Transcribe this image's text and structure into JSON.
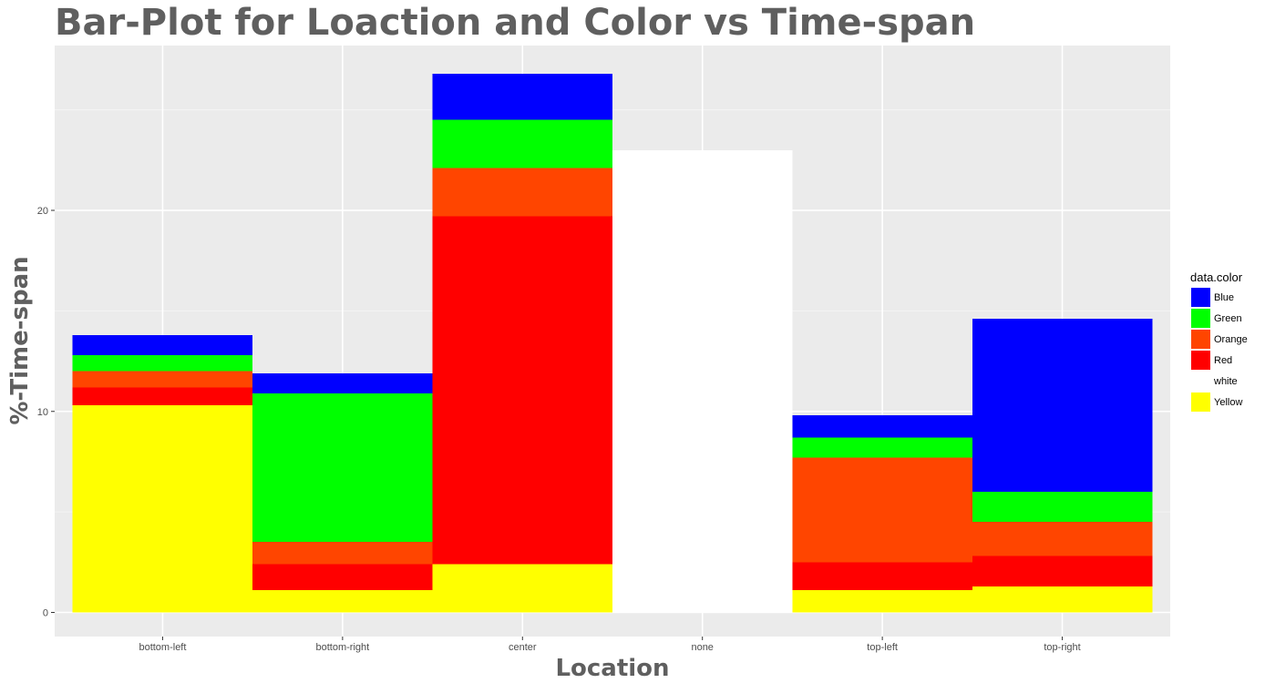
{
  "chart_data": {
    "type": "bar",
    "stacked": true,
    "title": "Bar-Plot for Loaction and Color vs Time-span",
    "xlabel": "Location",
    "ylabel": "%-Time-span",
    "categories": [
      "bottom-left",
      "bottom-right",
      "center",
      "none",
      "top-left",
      "top-right"
    ],
    "stack_order": [
      "Yellow",
      "Red",
      "Orange",
      "Green",
      "Blue",
      "white"
    ],
    "series": [
      {
        "name": "Blue",
        "color": "#0000ff",
        "values": [
          1.0,
          1.0,
          2.3,
          0,
          1.1,
          8.6
        ]
      },
      {
        "name": "Green",
        "color": "#00ff00",
        "values": [
          0.8,
          7.4,
          2.4,
          0,
          1.0,
          1.5
        ]
      },
      {
        "name": "Orange",
        "color": "#ff4500",
        "values": [
          0.8,
          1.1,
          2.4,
          0,
          5.2,
          1.7
        ]
      },
      {
        "name": "Red",
        "color": "#ff0000",
        "values": [
          0.9,
          1.3,
          17.3,
          0,
          1.4,
          1.5
        ]
      },
      {
        "name": "white",
        "color": "#ffffff",
        "values": [
          0,
          0,
          0,
          23.0,
          0,
          0
        ]
      },
      {
        "name": "Yellow",
        "color": "#ffff00",
        "values": [
          10.3,
          1.1,
          2.4,
          0,
          1.1,
          1.3
        ]
      }
    ],
    "yticks": [
      0,
      10,
      20
    ],
    "ylim": [
      -1.2,
      28.2
    ],
    "grid": true,
    "legend": {
      "title": "data.color",
      "position": "right"
    }
  },
  "colors": {
    "panel_background": "#ebebeb",
    "grid_major": "#ffffff",
    "grid_minor": "#f4f4f4",
    "title": "#5f5f5f"
  }
}
